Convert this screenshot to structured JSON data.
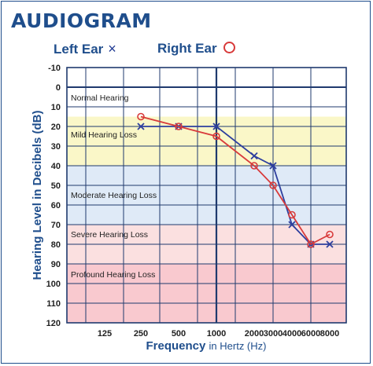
{
  "title": "AUDIOGRAM",
  "legend": {
    "left": {
      "label": "Left Ear",
      "symbol": "×"
    },
    "right": {
      "label": "Right Ear",
      "symbol": "○"
    }
  },
  "chart_data": {
    "type": "line",
    "xlabel_main": "Frequency",
    "xlabel_sub": "in Hertz (Hz)",
    "ylabel": "Hearing Level in Decibels (dB)",
    "x_ticks": [
      "125",
      "250",
      "500",
      "1000",
      "2000",
      "3000",
      "4000",
      "6000",
      "8000"
    ],
    "y_ticks": [
      -10,
      0,
      10,
      20,
      30,
      40,
      50,
      60,
      70,
      80,
      90,
      100,
      110,
      120
    ],
    "ylim": [
      -10,
      120
    ],
    "y_inverted": true,
    "bands": [
      {
        "label": "Normal Hearing",
        "from": -10,
        "to": 15,
        "color": "#ffffff"
      },
      {
        "label": "Mild Hearing Loss",
        "from": 15,
        "to": 40,
        "color": "#faf7c8"
      },
      {
        "label": "Moderate Hearing Loss",
        "from": 40,
        "to": 70,
        "color": "#dfeaf7"
      },
      {
        "label": "Severe Hearing Loss",
        "from": 70,
        "to": 90,
        "color": "#fbe0e0"
      },
      {
        "label": "Profound Hearing Loss",
        "from": 90,
        "to": 120,
        "color": "#f9c9cf"
      }
    ],
    "series": [
      {
        "name": "Left Ear",
        "marker": "x",
        "color": "#2e3f9e",
        "x": [
          "250",
          "500",
          "1000",
          "2000",
          "3000",
          "4000",
          "6000",
          "8000"
        ],
        "values": [
          20,
          20,
          20,
          35,
          40,
          70,
          80,
          80
        ]
      },
      {
        "name": "Right Ear",
        "marker": "o",
        "color": "#d83a3a",
        "x": [
          "250",
          "500",
          "1000",
          "2000",
          "3000",
          "4000",
          "6000",
          "8000"
        ],
        "values": [
          15,
          20,
          25,
          40,
          50,
          65,
          80,
          75
        ]
      }
    ]
  }
}
